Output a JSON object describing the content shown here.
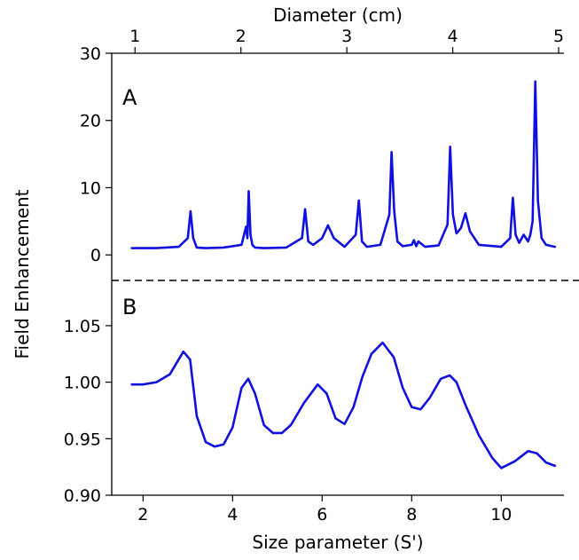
{
  "chart_data": [
    {
      "panel": "A",
      "type": "line",
      "top_xlabel": "Diameter (cm)",
      "top_xticks": [
        "1",
        "2",
        "3",
        "4",
        "5"
      ],
      "top_xtick_values": [
        1,
        2,
        3,
        4,
        5
      ],
      "top_xlim": [
        0.78,
        5.05
      ],
      "xlim": [
        1.3,
        11.4
      ],
      "ylabel": "Field Enhancement",
      "ylim": [
        -3.8,
        30
      ],
      "yticks": [
        "0",
        "10",
        "20",
        "30"
      ],
      "ytick_values": [
        0,
        10,
        20,
        30
      ],
      "color": "#1010e0",
      "series": [
        {
          "x": [
            1.75,
            2.3,
            2.8,
            3.0,
            3.06,
            3.12,
            3.2,
            3.4,
            3.8,
            4.2,
            4.3,
            4.33,
            4.36,
            4.4,
            4.44,
            4.5,
            4.7,
            5.2,
            5.55,
            5.62,
            5.69,
            5.8,
            6.0,
            6.13,
            6.26,
            6.5,
            6.75,
            6.82,
            6.89,
            7.0,
            7.3,
            7.5,
            7.55,
            7.61,
            7.68,
            7.8,
            8.0,
            8.05,
            8.1,
            8.15,
            8.3,
            8.6,
            8.8,
            8.86,
            8.92,
            9.0,
            9.1,
            9.2,
            9.3,
            9.5,
            10.0,
            10.2,
            10.26,
            10.32,
            10.4,
            10.5,
            10.6,
            10.65,
            10.7,
            10.76,
            10.82,
            10.9,
            11.0,
            11.2
          ],
          "y": [
            1.0,
            1.0,
            1.2,
            2.5,
            6.5,
            2.5,
            1.1,
            1.0,
            1.1,
            1.5,
            4.2,
            2.5,
            9.5,
            3.0,
            1.5,
            1.1,
            1.0,
            1.1,
            2.5,
            6.8,
            2.0,
            1.5,
            2.5,
            4.4,
            2.5,
            1.2,
            3.0,
            8.1,
            2.0,
            1.2,
            1.5,
            6.0,
            15.3,
            6.5,
            2.0,
            1.3,
            1.5,
            2.2,
            1.3,
            2.0,
            1.2,
            1.4,
            4.5,
            16.1,
            6.0,
            3.2,
            4.0,
            6.2,
            3.5,
            1.5,
            1.2,
            2.5,
            8.5,
            3.0,
            1.8,
            3.0,
            2.0,
            3.0,
            5.0,
            25.8,
            8.0,
            2.5,
            1.5,
            1.2
          ]
        }
      ]
    },
    {
      "panel": "B",
      "type": "line",
      "xlabel": "Size parameter (S')",
      "xticks": [
        "2",
        "4",
        "6",
        "8",
        "10"
      ],
      "xtick_values": [
        2,
        4,
        6,
        8,
        10
      ],
      "xlim": [
        1.3,
        11.4
      ],
      "ylim": [
        0.9,
        1.09
      ],
      "yticks": [
        "0.90",
        "0.95",
        "1.00",
        "1.05"
      ],
      "ytick_values": [
        0.9,
        0.95,
        1.0,
        1.05
      ],
      "color": "#1010e0",
      "series": [
        {
          "x": [
            1.75,
            2.0,
            2.3,
            2.6,
            2.9,
            3.05,
            3.2,
            3.4,
            3.6,
            3.8,
            4.0,
            4.2,
            4.35,
            4.5,
            4.7,
            4.9,
            5.1,
            5.3,
            5.6,
            5.9,
            6.1,
            6.3,
            6.5,
            6.7,
            6.9,
            7.1,
            7.35,
            7.6,
            7.8,
            8.0,
            8.2,
            8.4,
            8.65,
            8.85,
            9.0,
            9.2,
            9.5,
            9.8,
            10.0,
            10.3,
            10.6,
            10.8,
            11.0,
            11.2
          ],
          "y": [
            0.998,
            0.998,
            1.0,
            1.007,
            1.027,
            1.02,
            0.97,
            0.947,
            0.943,
            0.945,
            0.96,
            0.995,
            1.003,
            0.99,
            0.962,
            0.955,
            0.955,
            0.962,
            0.982,
            0.998,
            0.99,
            0.968,
            0.963,
            0.978,
            1.005,
            1.025,
            1.035,
            1.022,
            0.995,
            0.978,
            0.976,
            0.986,
            1.003,
            1.006,
            1.0,
            0.98,
            0.953,
            0.933,
            0.924,
            0.93,
            0.939,
            0.937,
            0.929,
            0.926
          ]
        }
      ]
    }
  ],
  "labels": {
    "panel_a": "A",
    "panel_b": "B"
  }
}
